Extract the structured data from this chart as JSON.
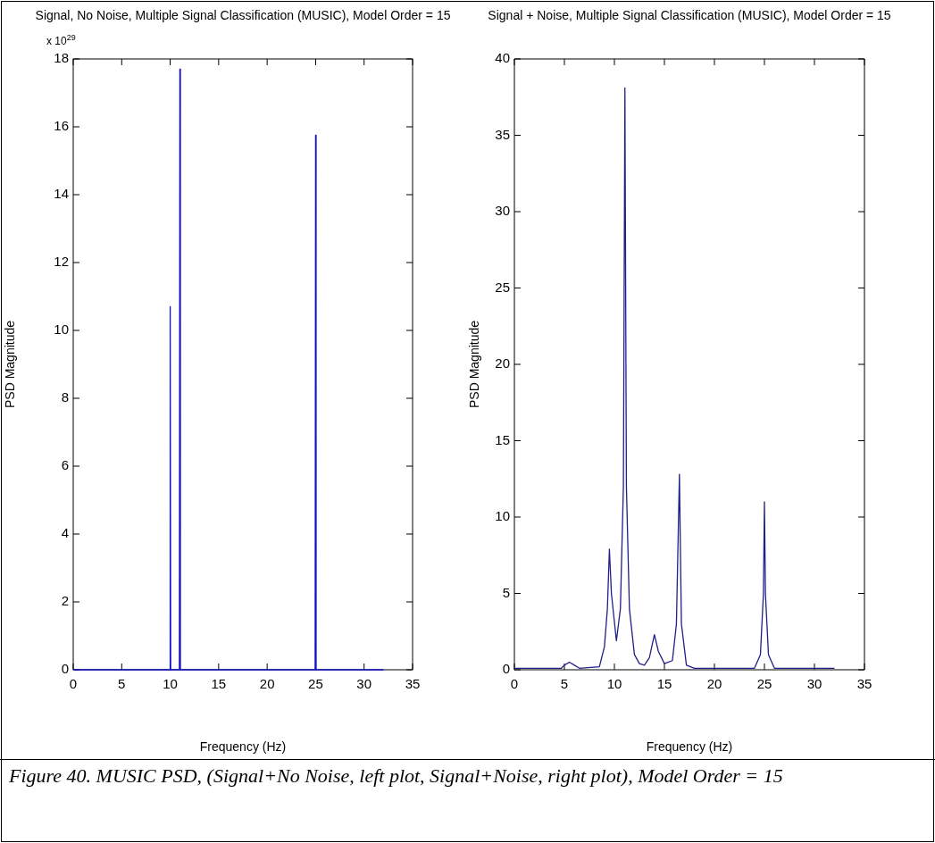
{
  "chart_data": [
    {
      "type": "line",
      "title": "Signal, No Noise, Multiple Signal Classification (MUSIC), Model Order = 15",
      "xlabel": "Frequency (Hz)",
      "ylabel": "PSD Magnitude",
      "annotations": [
        "x 10$^{29}$"
      ],
      "marker": "none",
      "xlim": [
        0,
        35
      ],
      "xticks": [
        0,
        5,
        10,
        15,
        20,
        25,
        30,
        35
      ],
      "ylim": [
        0,
        18
      ],
      "yticks": [
        0,
        2,
        4,
        6,
        8,
        10,
        12,
        14,
        16,
        18
      ],
      "series": [
        {
          "color": "#1010c8",
          "x": [
            0,
            9.95,
            10,
            10.05,
            10.95,
            11,
            11.05,
            24.95,
            25,
            25.05,
            32
          ],
          "values": [
            0,
            0,
            10.7,
            0,
            0,
            17.7,
            0,
            0,
            15.75,
            0,
            0
          ]
        }
      ]
    },
    {
      "type": "line",
      "title": "Signal + Noise, Multiple Signal Classification (MUSIC), Model Order = 15",
      "xlabel": "Frequency (Hz)",
      "ylabel": "PSD Magnitude",
      "annotations": [
        "Figure 40. MUSIC PSD, (Signal+No Noise, left plot, Signal+Noise, right plot), Model Order = 15"
      ],
      "marker": "none",
      "xlim": [
        0,
        35
      ],
      "xticks": [
        0,
        5,
        10,
        15,
        20,
        25,
        30,
        35
      ],
      "ylim": [
        0,
        40
      ],
      "yticks": [
        0,
        5,
        10,
        15,
        20,
        25,
        30,
        35,
        40
      ],
      "series": [
        {
          "color": "#202088",
          "x": [
            0,
            4.7,
            5,
            5.5,
            6,
            6.5,
            8.5,
            9,
            9.3,
            9.5,
            9.7,
            10.2,
            10.6,
            10.9,
            11.05,
            11.2,
            11.5,
            12,
            12.5,
            13,
            13.5,
            14,
            14.4,
            15,
            15.8,
            16.2,
            16.5,
            16.7,
            17.2,
            18,
            24,
            24.6,
            24.9,
            25,
            25.1,
            25.4,
            26,
            32
          ],
          "values": [
            0.1,
            0.1,
            0.3,
            0.5,
            0.3,
            0.1,
            0.2,
            1.5,
            4,
            7.9,
            5,
            1.9,
            4,
            12,
            38.1,
            12,
            4,
            1,
            0.4,
            0.3,
            0.8,
            2.3,
            1.2,
            0.4,
            0.6,
            3,
            12.8,
            3,
            0.3,
            0.1,
            0.1,
            1,
            5,
            11,
            5,
            1,
            0.1,
            0.1
          ]
        }
      ]
    }
  ]
}
